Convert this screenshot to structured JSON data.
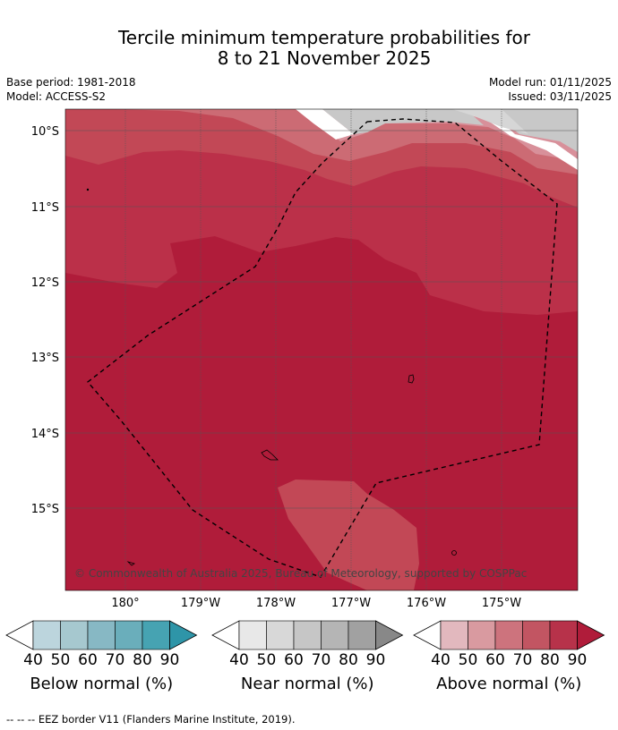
{
  "title_line1": "Tercile minimum temperature probabilities for",
  "title_line2": "8 to 21 November 2025",
  "base_period": "Base period: 1981-2018",
  "model": "Model: ACCESS-S2",
  "model_run": "Model run: 01/11/2025",
  "issued": "Issued: 03/11/2025",
  "lat_labels": [
    "10°S",
    "11°S",
    "12°S",
    "13°S",
    "14°S",
    "15°S"
  ],
  "lon_labels": [
    "180°",
    "179°W",
    "178°W",
    "177°W",
    "176°W",
    "175°W"
  ],
  "copyright": "© Commonwealth of Australia 2025, Bureau of Meteorology, supported by COSPPac",
  "colorbars": [
    {
      "title": "Below normal (%)",
      "ticks": [
        "40",
        "50",
        "60",
        "70",
        "80",
        "90"
      ],
      "colors": [
        "#bcd5dd",
        "#a6c8cf",
        "#87b8c4",
        "#6aaebb",
        "#46a3b2",
        "#2e95a8"
      ]
    },
    {
      "title": "Near normal (%)",
      "ticks": [
        "40",
        "50",
        "60",
        "70",
        "80",
        "90"
      ],
      "colors": [
        "#e8e8e8",
        "#d8d8d8",
        "#c6c6c6",
        "#b5b5b5",
        "#a1a1a1",
        "#888888"
      ]
    },
    {
      "title": "Above normal (%)",
      "ticks": [
        "40",
        "50",
        "60",
        "70",
        "80",
        "90"
      ],
      "colors": [
        "#e2b8be",
        "#d99aa0",
        "#cd737d",
        "#c25562",
        "#b7324a",
        "#b01c3a"
      ]
    }
  ],
  "footer": "--  --  -- EEZ border V11 (Flanders Marine Institute, 2019)."
}
